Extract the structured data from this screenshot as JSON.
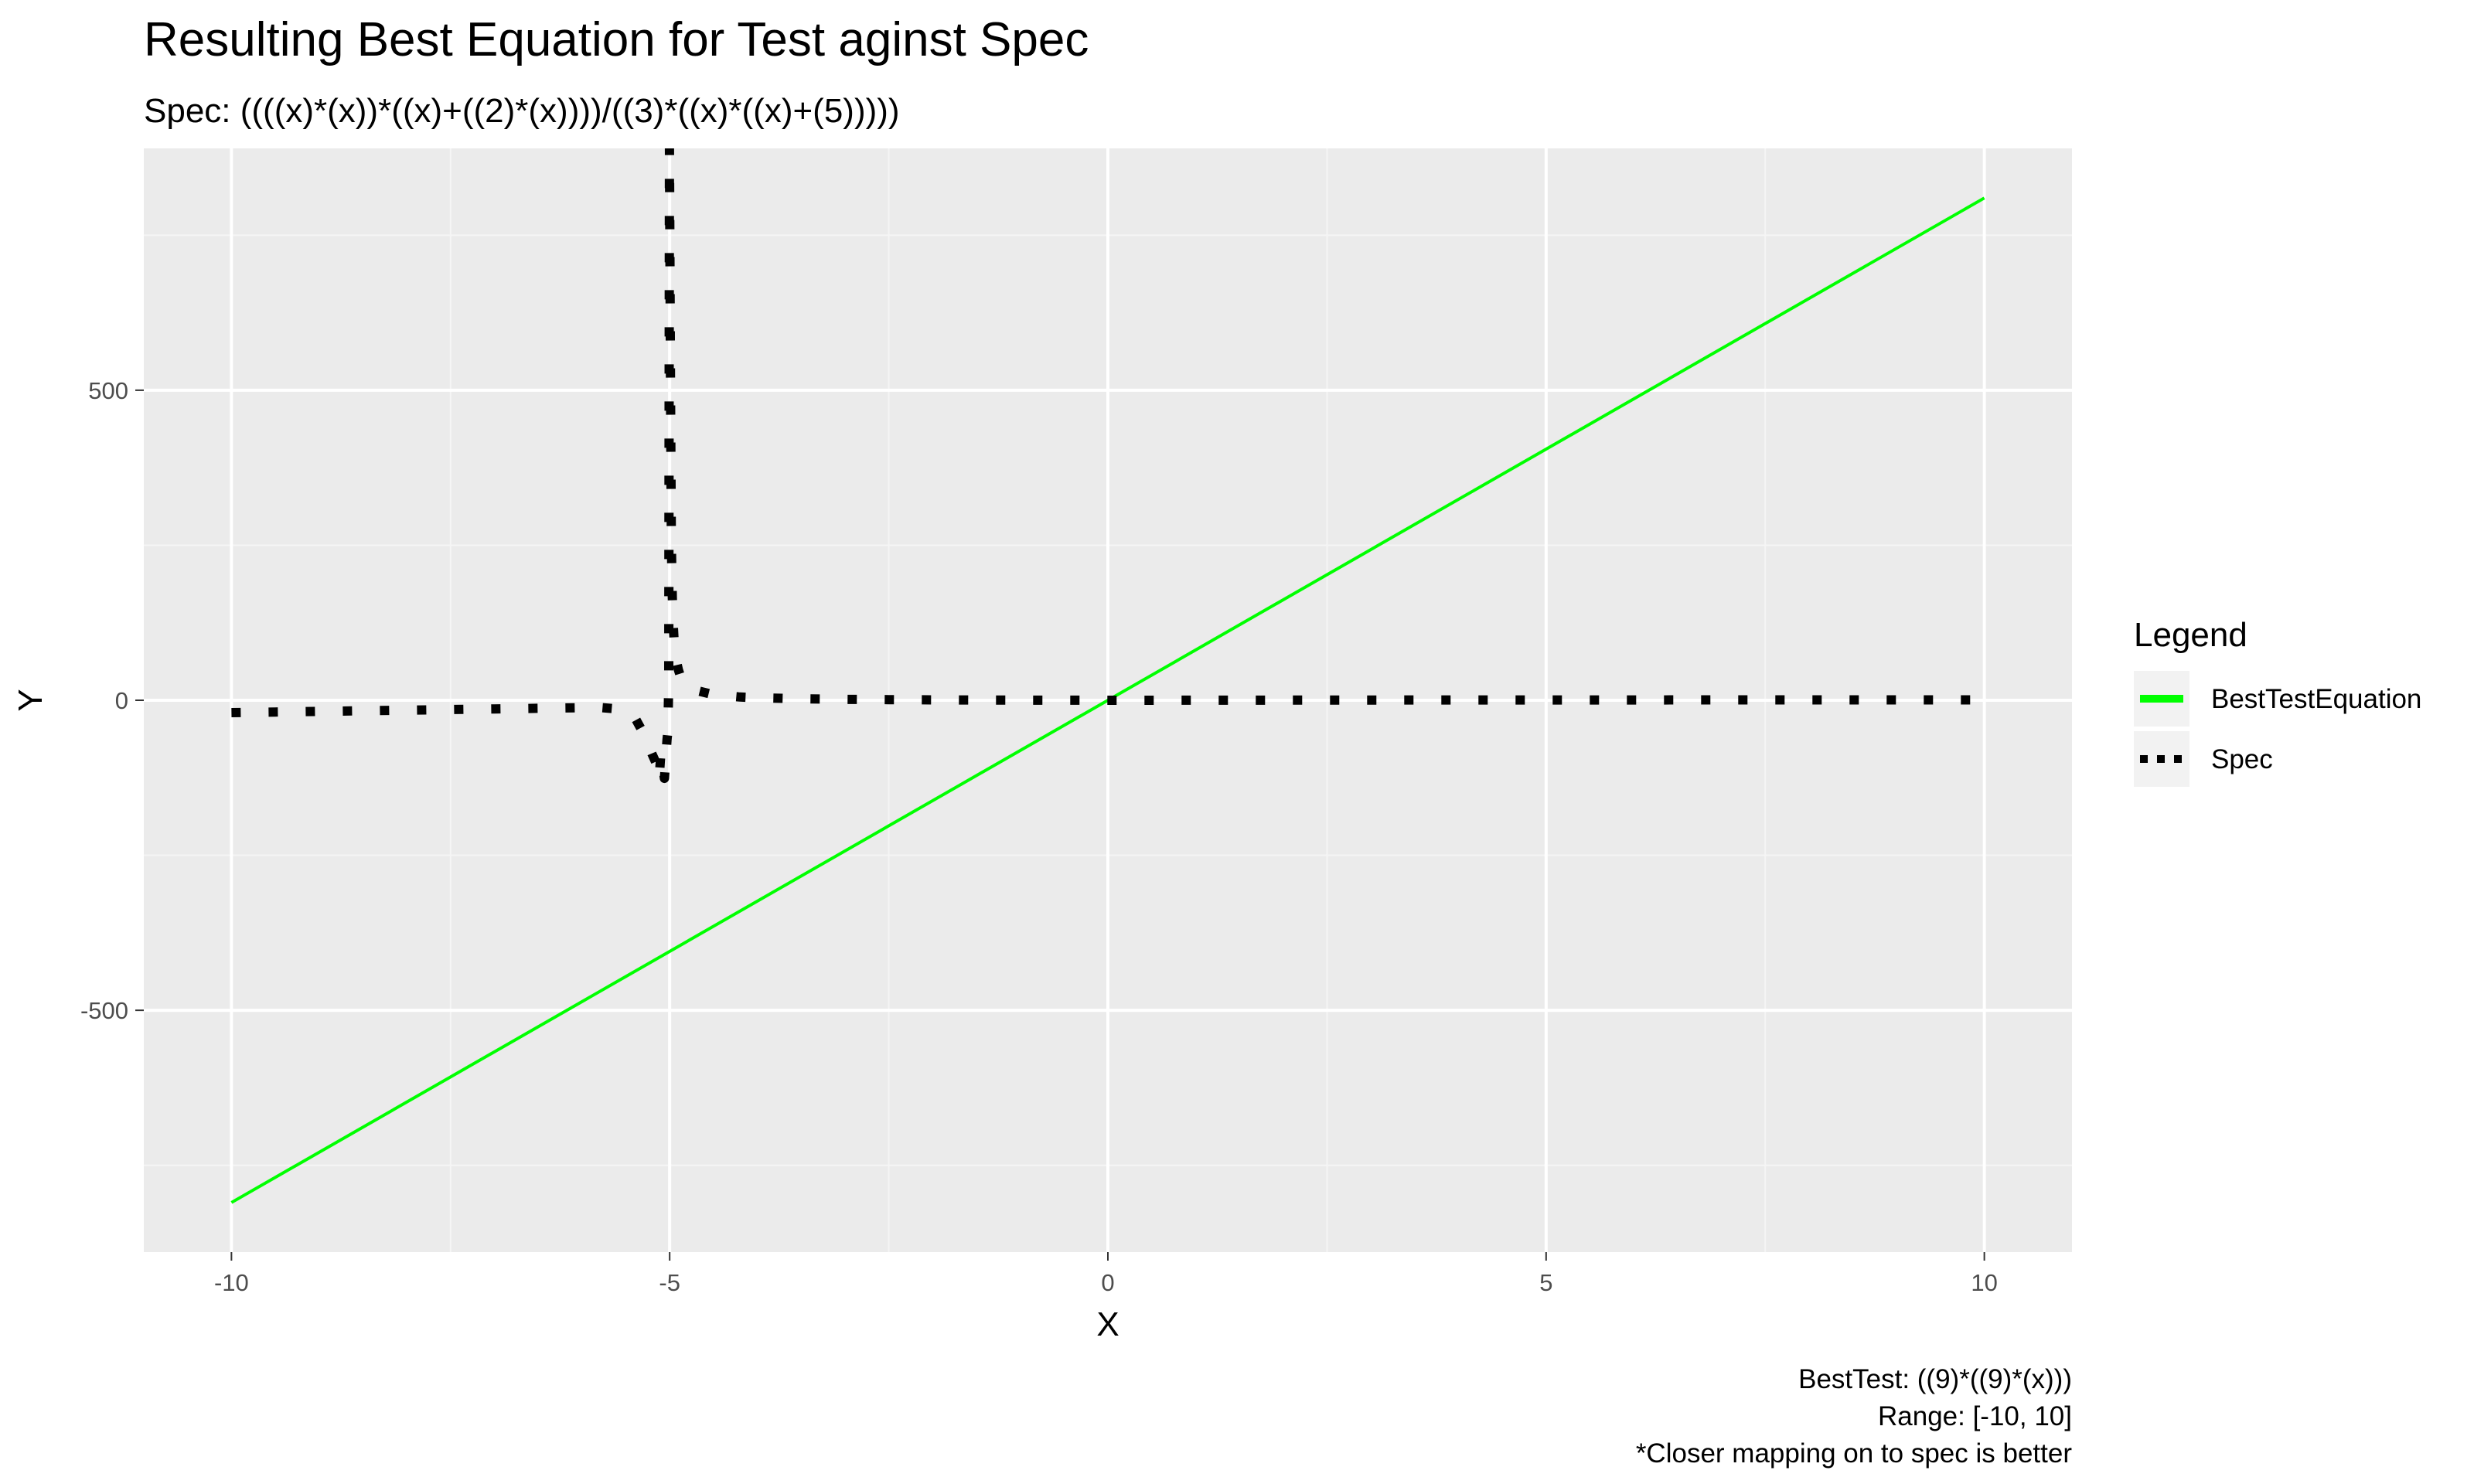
{
  "chart_data": {
    "type": "line",
    "title": "Resulting Best Equation for Test aginst Spec",
    "subtitle": "Spec: ((((x)*(x))*((x)+((2)*(x))))/((3)*((x)*((x)+(5)))))",
    "xlabel": "X",
    "ylabel": "Y",
    "xlim": [
      -11,
      11
    ],
    "ylim": [
      -890,
      890
    ],
    "x_ticks": [
      -10,
      -5,
      0,
      5,
      10
    ],
    "x_tick_labels": [
      "-10",
      "-5",
      "0",
      "5",
      "10"
    ],
    "y_ticks": [
      -500,
      0,
      500
    ],
    "y_tick_labels": [
      "-500",
      "0",
      "500"
    ],
    "x_minor_breaks": [
      -7.5,
      -2.5,
      2.5,
      7.5
    ],
    "y_minor_breaks": [
      -750,
      -250,
      250,
      750
    ],
    "grid": true,
    "legend_position": "right",
    "legend_title": "Legend",
    "series": [
      {
        "name": "BestTestEquation",
        "color": "#00ff00",
        "style": "solid",
        "x": [
          -10,
          10
        ],
        "y": [
          -810,
          810
        ]
      },
      {
        "name": "Spec",
        "color": "#000000",
        "style": "dotted",
        "x": [
          -10,
          -9.5,
          -9,
          -8.5,
          -8,
          -7.5,
          -7,
          -6.5,
          -6,
          -5.8,
          -5.6,
          -5.4,
          -5.3,
          -5.2,
          -5.15,
          -5.12,
          -5.1,
          -5.08,
          -5.06,
          -5.04,
          -5.03,
          -5.02,
          -5.01,
          -5.0025,
          -4.99,
          -4.98,
          -4.97,
          -4.96,
          -4.95,
          -4.94,
          -4.93,
          -4.92,
          -4.9,
          -4.88,
          -4.85,
          -4.8,
          -4.7,
          -4.5,
          -4.2,
          -4,
          -3.5,
          -3,
          -2.5,
          -2,
          -1.5,
          -1,
          -0.5,
          0,
          1,
          2,
          3,
          4,
          5,
          6,
          7,
          8,
          9,
          10
        ],
        "y": [
          -20,
          -19,
          -18,
          -17,
          -16,
          -15,
          -14,
          -13,
          -12,
          -11.6,
          -14,
          -27,
          -53,
          -87,
          -103,
          -126,
          -85,
          -106,
          -126,
          -84,
          -63,
          -50,
          31,
          890,
          499,
          249,
          166,
          124,
          99,
          82,
          70,
          61,
          49,
          40,
          32,
          24,
          16,
          9,
          5.25,
          4,
          2.33,
          1.5,
          1,
          0.67,
          0.43,
          0.25,
          0.11,
          0,
          0.17,
          0.29,
          0.38,
          0.44,
          0.5,
          0.55,
          0.58,
          0.62,
          0.64,
          0.67
        ]
      }
    ]
  },
  "caption": {
    "line1": "BestTest: ((9)*((9)*(x)))",
    "line2": "Range: [-10, 10]",
    "line3": "*Closer mapping on to spec is better"
  },
  "colors": {
    "panel_background": "#ebebeb",
    "grid_major": "#ffffff",
    "grid_minor": "#f5f5f5",
    "legend_key_background": "#f2f2f2"
  }
}
